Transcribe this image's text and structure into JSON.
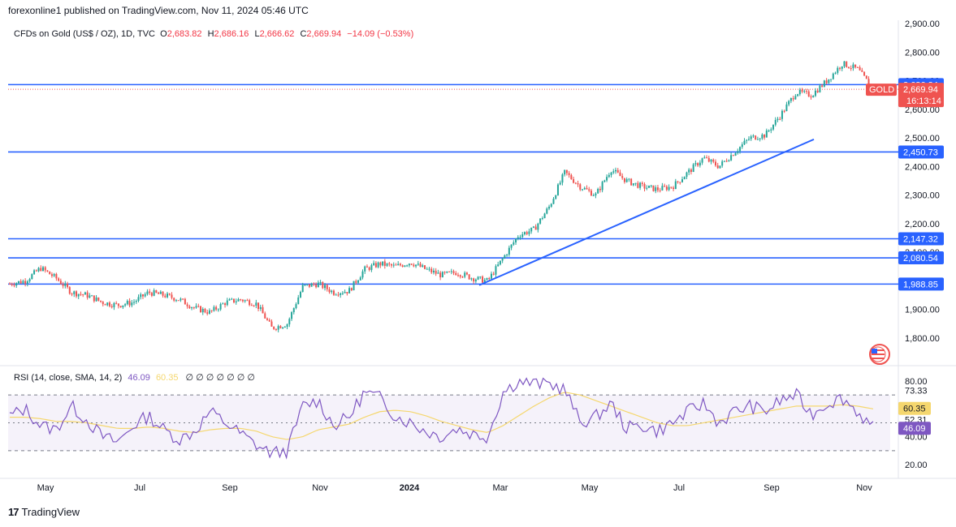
{
  "header": {
    "published": "forexonline1 published on TradingView.com, Nov 11, 2024 05:46 UTC"
  },
  "symbol": {
    "name": "CFDs on Gold (US$ / OZ), 1D, TVC",
    "o_label": "O",
    "o": "2,683.82",
    "h_label": "H",
    "h": "2,686.16",
    "l_label": "L",
    "l": "2,666.62",
    "c_label": "C",
    "c": "2,669.94",
    "change": "−14.09 (−0.53%)"
  },
  "rsi_legend": {
    "label": "RSI (14, close, SMA, 14, 2)",
    "rsi": "46.09",
    "sma": "60.35",
    "empty": "∅ ∅ ∅ ∅ ∅ ∅ ∅"
  },
  "brand": {
    "name": "TradingView"
  },
  "colors": {
    "up": "#26a69a",
    "down": "#ef5350",
    "line": "#2962ff",
    "rsi": "#7e57c2",
    "rsi_sma": "#f5d76e"
  },
  "chart_data": {
    "type": "candlestick",
    "price_axis": {
      "ticks": [
        "2,900.00",
        "2,800.00",
        "2,700.00",
        "2,600.00",
        "2,500.00",
        "2,400.00",
        "2,300.00",
        "2,200.00",
        "2,100.00",
        "2,000.00",
        "1,900.00",
        "1,800.00"
      ],
      "range": [
        1750,
        2910
      ]
    },
    "time_axis": [
      "May",
      "Jul",
      "Sep",
      "Nov",
      "2024",
      "Mar",
      "May",
      "Jul",
      "Sep",
      "Nov"
    ],
    "horizontal_levels": [
      "2,686.34",
      "2,450.73",
      "2,147.32",
      "2,080.54",
      "1,988.85"
    ],
    "last_price": {
      "symbol": "GOLD",
      "value": "2,669.94",
      "countdown": "16:13:14"
    },
    "trendline": {
      "from": [
        "Feb 2024",
        1985
      ],
      "to": [
        "Oct 2024",
        2495
      ]
    },
    "price_series": [
      [
        "Apr 2023",
        1990
      ],
      [
        "Apr 2023",
        2000
      ],
      [
        "May 2023",
        2045
      ],
      [
        "May 2023",
        2010
      ],
      [
        "May 2023",
        1960
      ],
      [
        "Jun 2023",
        1950
      ],
      [
        "Jun 2023",
        1925
      ],
      [
        "Jun 2023",
        1915
      ],
      [
        "Jul 2023",
        1925
      ],
      [
        "Jul 2023",
        1960
      ],
      [
        "Jul 2023",
        1950
      ],
      [
        "Aug 2023",
        1935
      ],
      [
        "Aug 2023",
        1905
      ],
      [
        "Aug 2023",
        1890
      ],
      [
        "Sep 2023",
        1925
      ],
      [
        "Sep 2023",
        1935
      ],
      [
        "Sep 2023",
        1920
      ],
      [
        "Oct 2023",
        1835
      ],
      [
        "Oct 2023",
        1850
      ],
      [
        "Oct 2023",
        1980
      ],
      [
        "Nov 2023",
        1990
      ],
      [
        "Nov 2023",
        1960
      ],
      [
        "Nov 2023",
        1965
      ],
      [
        "Dec 2023",
        2040
      ],
      [
        "Dec 2023",
        2060
      ],
      [
        "Dec 2023",
        2050
      ],
      [
        "Jan 2024",
        2065
      ],
      [
        "Jan 2024",
        2040
      ],
      [
        "Jan 2024",
        2020
      ],
      [
        "Feb 2024",
        2030
      ],
      [
        "Feb 2024",
        2010
      ],
      [
        "Feb 2024",
        2000
      ],
      [
        "Mar 2024",
        2080
      ],
      [
        "Mar 2024",
        2160
      ],
      [
        "Mar 2024",
        2180
      ],
      [
        "Apr 2024",
        2260
      ],
      [
        "Apr 2024",
        2380
      ],
      [
        "Apr 2024",
        2330
      ],
      [
        "May 2024",
        2300
      ],
      [
        "May 2024",
        2390
      ],
      [
        "May 2024",
        2350
      ],
      [
        "Jun 2024",
        2330
      ],
      [
        "Jun 2024",
        2320
      ],
      [
        "Jun 2024",
        2330
      ],
      [
        "Jul 2024",
        2380
      ],
      [
        "Jul 2024",
        2430
      ],
      [
        "Aug 2024",
        2400
      ],
      [
        "Aug 2024",
        2450
      ],
      [
        "Aug 2024",
        2500
      ],
      [
        "Sep 2024",
        2510
      ],
      [
        "Sep 2024",
        2580
      ],
      [
        "Sep 2024",
        2660
      ],
      [
        "Oct 2024",
        2650
      ],
      [
        "Oct 2024",
        2700
      ],
      [
        "Oct 2024",
        2760
      ],
      [
        "Nov 2024",
        2740
      ],
      [
        "Nov 2024",
        2670
      ]
    ],
    "rsi_axis": {
      "ticks": [
        "80.00",
        "73.33",
        "60.00",
        "52.31",
        "40.00",
        "20.00"
      ],
      "range": [
        15,
        85
      ],
      "bands": [
        30,
        70
      ]
    },
    "rsi_tags": {
      "sma": "60.35",
      "rsi": "46.09"
    },
    "rsi_series": [
      55,
      60,
      48,
      45,
      62,
      52,
      40,
      36,
      48,
      55,
      45,
      38,
      44,
      58,
      50,
      42,
      34,
      28,
      30,
      62,
      66,
      48,
      54,
      72,
      68,
      55,
      50,
      44,
      40,
      46,
      42,
      40,
      72,
      80,
      78,
      78,
      74,
      50,
      54,
      64,
      46,
      48,
      44,
      50,
      58,
      64,
      50,
      58,
      62,
      58,
      66,
      70,
      56,
      64,
      68,
      58,
      46
    ],
    "rsi_sma_series": [
      54,
      54,
      53,
      51,
      51,
      50,
      48,
      46,
      46,
      47,
      46,
      44,
      43,
      45,
      46,
      46,
      44,
      40,
      38,
      40,
      45,
      47,
      49,
      54,
      58,
      59,
      58,
      55,
      51,
      48,
      45,
      43,
      48,
      55,
      62,
      68,
      72,
      70,
      66,
      62,
      58,
      54,
      50,
      48,
      48,
      50,
      52,
      54,
      56,
      58,
      60,
      62,
      62,
      62,
      63,
      62,
      60
    ]
  }
}
